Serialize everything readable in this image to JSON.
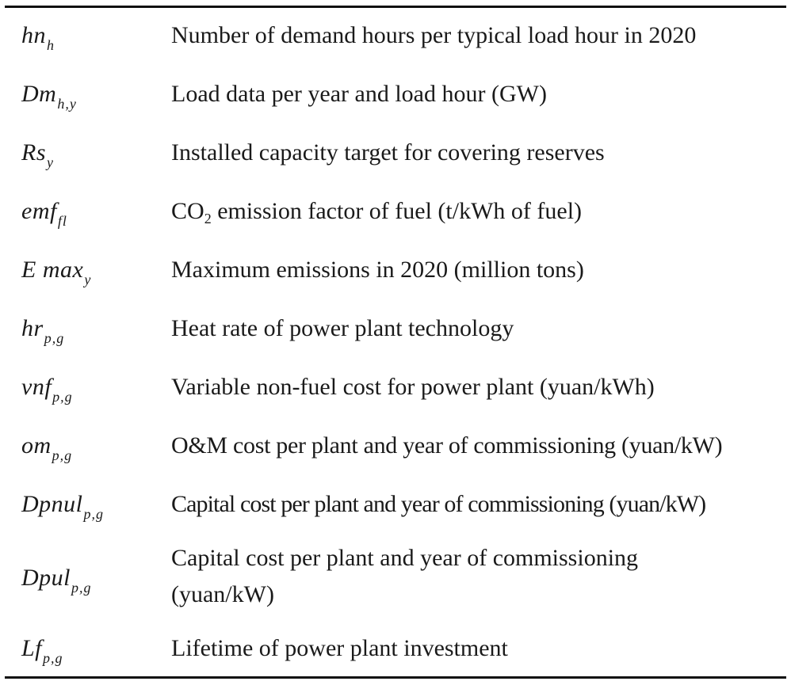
{
  "rows": [
    {
      "sym": "hn",
      "sub": "h",
      "desc": "Number of demand hours per typical load hour in 2020"
    },
    {
      "sym": "Dm",
      "sub": "h,y",
      "desc": "Load data per year and load hour (GW)"
    },
    {
      "sym": "Rs",
      "sub": "y",
      "desc": "Installed capacity target for covering reserves"
    },
    {
      "sym": "emf",
      "sub": "fl",
      "desc_pre": "CO",
      "desc_sub": "2",
      "desc": " emission factor of fuel (t/kWh of fuel)"
    },
    {
      "sym": "E max",
      "sub": "y",
      "desc": "Maximum emissions in 2020 (million tons)"
    },
    {
      "sym": "hr",
      "sub": "p,g",
      "desc": "Heat rate of power plant technology"
    },
    {
      "sym": "vnf",
      "sub": "p,g",
      "desc": "Variable non-fuel cost for power plant (yuan/kWh)"
    },
    {
      "sym": "om",
      "sub": "p,g",
      "desc": "O&M cost per plant and year of commissioning (yuan/kW)"
    },
    {
      "sym": "Dpnul",
      "sub": "p,g",
      "desc": "Capital cost per plant and year of commissioning (yuan/kW)"
    },
    {
      "sym": "Dpul",
      "sub": "p,g",
      "desc_line1": "Capital cost per plant and year of commissioning",
      "desc_line2": "(yuan/kW)"
    },
    {
      "sym": "Lf",
      "sub": "p,g",
      "desc": "Lifetime of power plant investment"
    }
  ]
}
